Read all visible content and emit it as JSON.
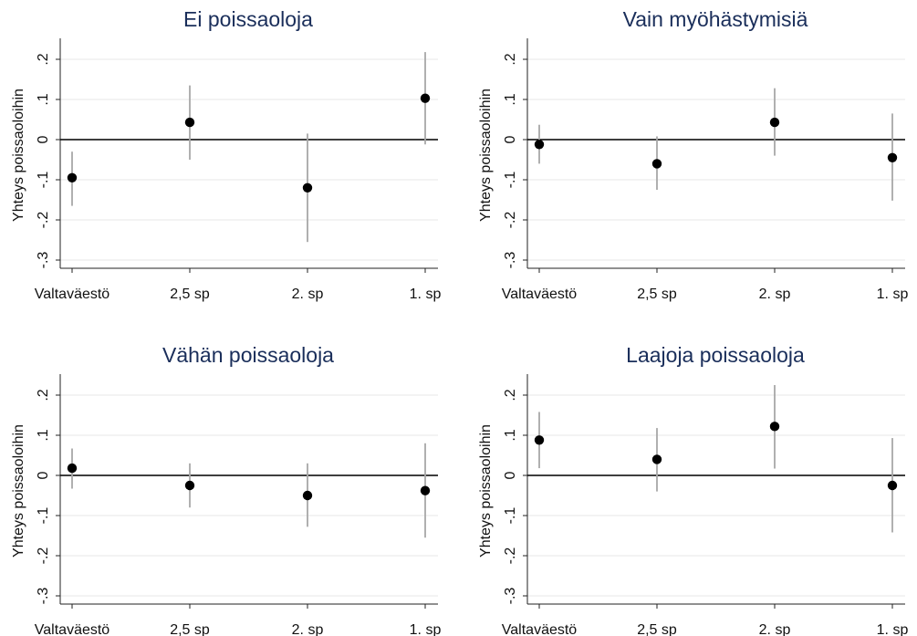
{
  "chart_data": [
    {
      "type": "scatter",
      "title": "Ei poissaoloja",
      "ylabel": "Yhteys poissaoloihin",
      "categories": [
        "Valtaväestö",
        "2,5 sp",
        "2. sp",
        "1. sp"
      ],
      "yticks": [
        "-.3",
        "-.2",
        "-.1",
        "0",
        ".1",
        ".2"
      ],
      "ylim": [
        -0.32,
        0.25
      ],
      "grid": true,
      "reference_line": 0,
      "points": [
        {
          "category": "Valtaväestö",
          "estimate": -0.095,
          "ci_low": -0.165,
          "ci_high": -0.03
        },
        {
          "category": "2,5 sp",
          "estimate": 0.043,
          "ci_low": -0.05,
          "ci_high": 0.135
        },
        {
          "category": "2. sp",
          "estimate": -0.12,
          "ci_low": -0.255,
          "ci_high": 0.015
        },
        {
          "category": "1. sp",
          "estimate": 0.103,
          "ci_low": -0.012,
          "ci_high": 0.218
        }
      ]
    },
    {
      "type": "scatter",
      "title": "Vain myöhästymisiä",
      "ylabel": "Yhteys poissaoloihin",
      "categories": [
        "Valtaväestö",
        "2,5 sp",
        "2. sp",
        "1. sp"
      ],
      "yticks": [
        "-.3",
        "-.2",
        "-.1",
        "0",
        ".1",
        ".2"
      ],
      "ylim": [
        -0.32,
        0.25
      ],
      "grid": true,
      "reference_line": 0,
      "points": [
        {
          "category": "Valtaväestö",
          "estimate": -0.012,
          "ci_low": -0.06,
          "ci_high": 0.037
        },
        {
          "category": "2,5 sp",
          "estimate": -0.06,
          "ci_low": -0.125,
          "ci_high": 0.008
        },
        {
          "category": "2. sp",
          "estimate": 0.043,
          "ci_low": -0.04,
          "ci_high": 0.128
        },
        {
          "category": "1. sp",
          "estimate": -0.045,
          "ci_low": -0.152,
          "ci_high": 0.065
        }
      ]
    },
    {
      "type": "scatter",
      "title": "Vähän poissaoloja",
      "ylabel": "Yhteys poissaoloihin",
      "categories": [
        "Valtaväestö",
        "2,5 sp",
        "2. sp",
        "1. sp"
      ],
      "yticks": [
        "-.3",
        "-.2",
        "-.1",
        "0",
        ".1",
        ".2"
      ],
      "ylim": [
        -0.32,
        0.25
      ],
      "grid": true,
      "reference_line": 0,
      "points": [
        {
          "category": "Valtaväestö",
          "estimate": 0.018,
          "ci_low": -0.033,
          "ci_high": 0.067
        },
        {
          "category": "2,5 sp",
          "estimate": -0.025,
          "ci_low": -0.08,
          "ci_high": 0.03
        },
        {
          "category": "2. sp",
          "estimate": -0.05,
          "ci_low": -0.128,
          "ci_high": 0.03
        },
        {
          "category": "1. sp",
          "estimate": -0.038,
          "ci_low": -0.155,
          "ci_high": 0.08
        }
      ]
    },
    {
      "type": "scatter",
      "title": "Laajoja poissaoloja",
      "ylabel": "Yhteys poissaoloihin",
      "categories": [
        "Valtaväestö",
        "2,5 sp",
        "2. sp",
        "1. sp"
      ],
      "yticks": [
        "-.3",
        "-.2",
        "-.1",
        "0",
        ".1",
        ".2"
      ],
      "ylim": [
        -0.32,
        0.25
      ],
      "grid": true,
      "reference_line": 0,
      "points": [
        {
          "category": "Valtaväestö",
          "estimate": 0.088,
          "ci_low": 0.018,
          "ci_high": 0.158
        },
        {
          "category": "2,5 sp",
          "estimate": 0.04,
          "ci_low": -0.04,
          "ci_high": 0.118
        },
        {
          "category": "2. sp",
          "estimate": 0.122,
          "ci_low": 0.017,
          "ci_high": 0.225
        },
        {
          "category": "1. sp",
          "estimate": -0.025,
          "ci_low": -0.142,
          "ci_high": 0.093
        }
      ]
    }
  ]
}
